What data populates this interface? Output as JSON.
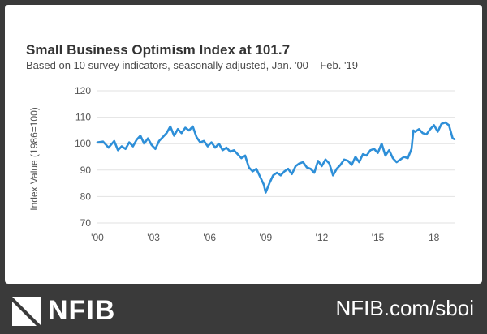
{
  "chart_data": {
    "type": "line",
    "title": "Small Business Optimism Index at 101.7",
    "subtitle": "Based on 10 survey indicators, seasonally adjusted, Jan. '00 – Feb. '19",
    "xlabel": "",
    "ylabel": "Index Value (1986=100)",
    "ylim": [
      70,
      120
    ],
    "yticks": [
      70,
      80,
      90,
      100,
      110,
      120
    ],
    "xlim": [
      2000.0,
      2019.1
    ],
    "xticks": [
      {
        "value": 2000,
        "label": "'00"
      },
      {
        "value": 2003,
        "label": "'03"
      },
      {
        "value": 2006,
        "label": "'06"
      },
      {
        "value": 2009,
        "label": "'09"
      },
      {
        "value": 2012,
        "label": "'12"
      },
      {
        "value": 2015,
        "label": "'15"
      },
      {
        "value": 2018,
        "label": "18"
      }
    ],
    "grid": true,
    "series": [
      {
        "name": "Small Business Optimism Index",
        "color": "#2e8fd8",
        "x": [
          2000.0,
          2000.3,
          2000.6,
          2000.9,
          2001.1,
          2001.3,
          2001.5,
          2001.7,
          2001.9,
          2002.1,
          2002.3,
          2002.5,
          2002.7,
          2002.9,
          2003.1,
          2003.3,
          2003.5,
          2003.7,
          2003.9,
          2004.1,
          2004.3,
          2004.5,
          2004.7,
          2004.9,
          2005.1,
          2005.3,
          2005.5,
          2005.7,
          2005.9,
          2006.1,
          2006.3,
          2006.5,
          2006.7,
          2006.9,
          2007.1,
          2007.3,
          2007.5,
          2007.7,
          2007.9,
          2008.1,
          2008.3,
          2008.5,
          2008.7,
          2008.9,
          2009.0,
          2009.2,
          2009.4,
          2009.6,
          2009.8,
          2010.0,
          2010.2,
          2010.4,
          2010.6,
          2010.8,
          2011.0,
          2011.2,
          2011.4,
          2011.6,
          2011.8,
          2012.0,
          2012.2,
          2012.4,
          2012.6,
          2012.8,
          2013.0,
          2013.2,
          2013.4,
          2013.6,
          2013.8,
          2014.0,
          2014.2,
          2014.4,
          2014.6,
          2014.8,
          2015.0,
          2015.2,
          2015.4,
          2015.6,
          2015.8,
          2016.0,
          2016.2,
          2016.4,
          2016.6,
          2016.8,
          2016.9,
          2017.0,
          2017.2,
          2017.4,
          2017.6,
          2017.8,
          2018.0,
          2018.2,
          2018.4,
          2018.6,
          2018.8,
          2019.0,
          2019.1
        ],
        "values": [
          100.5,
          100.8,
          98.5,
          101.0,
          97.5,
          99.0,
          98.0,
          100.5,
          99.0,
          101.5,
          103.0,
          100.0,
          102.0,
          99.5,
          98.0,
          101.0,
          102.5,
          104.0,
          106.5,
          103.0,
          105.5,
          104.0,
          106.0,
          105.0,
          106.5,
          102.5,
          100.5,
          101.0,
          99.0,
          100.5,
          98.5,
          100.0,
          97.5,
          98.5,
          97.0,
          97.5,
          96.0,
          94.5,
          95.5,
          91.0,
          89.5,
          90.5,
          87.5,
          84.5,
          81.5,
          85.0,
          88.0,
          89.0,
          88.0,
          89.5,
          90.5,
          88.5,
          91.5,
          92.5,
          93.0,
          91.0,
          90.5,
          89.0,
          93.5,
          91.5,
          94.0,
          92.5,
          88.0,
          90.5,
          92.0,
          94.0,
          93.5,
          92.0,
          95.0,
          93.0,
          96.0,
          95.5,
          97.5,
          98.0,
          96.5,
          100.0,
          95.5,
          97.5,
          94.5,
          93.0,
          94.0,
          95.0,
          94.5,
          98.0,
          105.0,
          104.5,
          105.5,
          104.0,
          103.5,
          105.5,
          107.0,
          104.5,
          107.5,
          108.0,
          107.0,
          102.0,
          101.7
        ]
      }
    ]
  },
  "footer": {
    "logo_text": "NFIB",
    "url": "NFIB.com/sboi"
  },
  "colors": {
    "line": "#2e8fd8",
    "footer_bg": "#3a3a3a"
  }
}
